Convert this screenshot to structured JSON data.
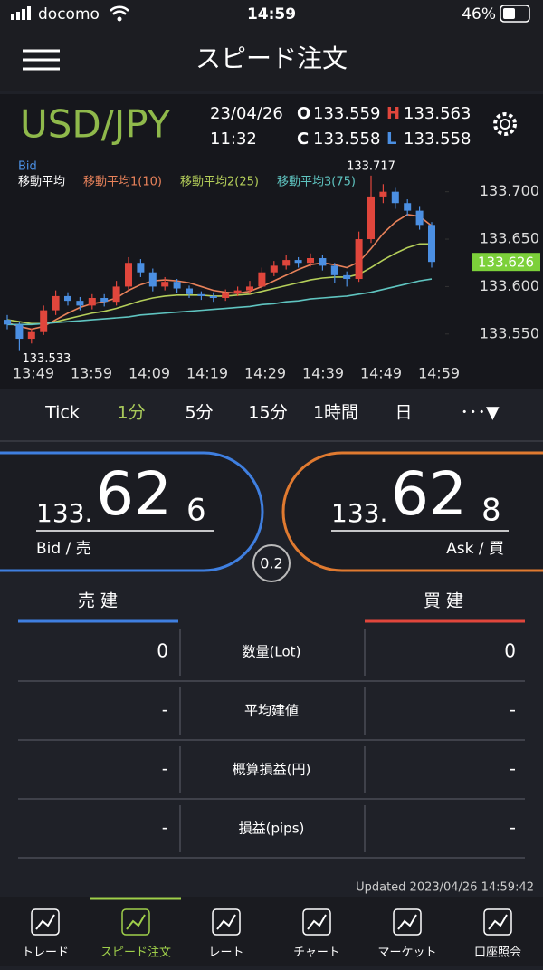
{
  "status": {
    "carrier": "docomo",
    "time": "14:59",
    "battery": "46%"
  },
  "header": {
    "title": "スピード注文"
  },
  "quote": {
    "pair": "USD/JPY",
    "date": "23/04/26",
    "time": "11:32",
    "open_key": "O",
    "open": "133.559",
    "high_key": "H",
    "high": "133.563",
    "close_key": "C",
    "close": "133.558",
    "low_key": "L",
    "low": "133.558"
  },
  "chart": {
    "type": "candlestick",
    "price_side": "Bid",
    "legend_title": "移動平均",
    "ylim": [
      133.525,
      133.735
    ],
    "yticks": [
      {
        "value": 133.55,
        "label": "133.550"
      },
      {
        "value": 133.6,
        "label": "133.600"
      },
      {
        "value": 133.65,
        "label": "133.650"
      },
      {
        "value": 133.7,
        "label": "133.700"
      }
    ],
    "xticks": [
      "13:49",
      "13:59",
      "14:09",
      "14:19",
      "14:29",
      "14:39",
      "14:49",
      "14:59"
    ],
    "up_color": "#e0463c",
    "down_color": "#4b8fe2",
    "open": [
      133.565,
      133.56,
      133.545,
      133.552,
      133.575,
      133.59,
      133.585,
      133.58,
      133.588,
      133.584,
      133.6,
      133.625,
      133.615,
      133.6,
      133.605,
      133.598,
      133.592,
      133.59,
      133.588,
      133.593,
      133.596,
      133.6,
      133.615,
      133.622,
      133.628,
      133.625,
      133.63,
      133.622,
      133.612,
      133.608,
      133.65,
      133.695,
      133.7,
      133.688,
      133.68,
      133.665
    ],
    "high": [
      133.57,
      133.563,
      133.556,
      133.58,
      133.596,
      133.594,
      133.589,
      133.592,
      133.592,
      133.606,
      133.631,
      133.629,
      133.619,
      133.61,
      133.608,
      133.601,
      133.595,
      133.594,
      133.597,
      133.6,
      133.606,
      133.62,
      133.627,
      133.633,
      133.631,
      133.635,
      133.633,
      133.625,
      133.616,
      133.658,
      133.717,
      133.708,
      133.704,
      133.692,
      133.684,
      133.668
    ],
    "low": [
      133.555,
      133.533,
      133.54,
      133.549,
      133.57,
      133.58,
      133.575,
      133.576,
      133.579,
      133.58,
      133.596,
      133.61,
      133.595,
      133.596,
      133.593,
      133.588,
      133.586,
      133.584,
      133.585,
      133.59,
      133.592,
      133.597,
      133.611,
      133.618,
      133.62,
      133.621,
      133.617,
      133.604,
      133.6,
      133.605,
      133.646,
      133.688,
      133.682,
      133.674,
      133.66,
      133.62
    ],
    "close": [
      133.56,
      133.545,
      133.552,
      133.575,
      133.59,
      133.585,
      133.58,
      133.588,
      133.584,
      133.6,
      133.625,
      133.615,
      133.6,
      133.605,
      133.598,
      133.592,
      133.59,
      133.588,
      133.593,
      133.596,
      133.6,
      133.615,
      133.622,
      133.628,
      133.625,
      133.63,
      133.622,
      133.612,
      133.608,
      133.65,
      133.695,
      133.7,
      133.688,
      133.68,
      133.665,
      133.626
    ],
    "ma": [
      {
        "name": "移動平均1(10)",
        "color": "#e8825a",
        "values": [
          133.562,
          133.558,
          133.555,
          133.558,
          133.565,
          133.572,
          133.578,
          133.582,
          133.584,
          133.588,
          133.596,
          133.602,
          133.606,
          133.607,
          133.606,
          133.604,
          133.6,
          133.596,
          133.594,
          133.593,
          133.595,
          133.6,
          133.606,
          133.612,
          133.618,
          133.623,
          133.625,
          133.623,
          133.62,
          133.626,
          133.64,
          133.656,
          133.668,
          133.676,
          133.674,
          133.664
        ]
      },
      {
        "name": "移動平均2(25)",
        "color": "#b5cf5a",
        "values": [
          133.565,
          133.563,
          133.561,
          133.561,
          133.563,
          133.566,
          133.569,
          133.572,
          133.574,
          133.577,
          133.581,
          133.585,
          133.588,
          133.59,
          133.591,
          133.591,
          133.591,
          133.59,
          133.59,
          133.591,
          133.592,
          133.595,
          133.598,
          133.601,
          133.604,
          133.607,
          133.609,
          133.61,
          133.61,
          133.613,
          133.62,
          133.628,
          133.635,
          133.641,
          133.645,
          133.645
        ]
      },
      {
        "name": "移動平均3(75)",
        "color": "#5fc4c0",
        "values": [
          133.56,
          133.56,
          133.56,
          133.561,
          133.562,
          133.563,
          133.564,
          133.565,
          133.566,
          133.567,
          133.568,
          133.57,
          133.571,
          133.572,
          133.573,
          133.574,
          133.575,
          133.576,
          133.577,
          133.578,
          133.579,
          133.581,
          133.582,
          133.584,
          133.585,
          133.587,
          133.588,
          133.589,
          133.59,
          133.592,
          133.594,
          133.597,
          133.6,
          133.603,
          133.606,
          133.608
        ]
      }
    ],
    "high_label": "133.717",
    "low_label": "133.533",
    "last_label": "133.626",
    "last_value": 133.626
  },
  "tabs": [
    "Tick",
    "1分",
    "5分",
    "15分",
    "1時間",
    "日",
    "･･･▼"
  ],
  "active_tab": 1,
  "bid": {
    "prefix": "133.",
    "big": "62",
    "small": "6",
    "label": "Bid / 売"
  },
  "ask": {
    "prefix": "133.",
    "big": "62",
    "small": "8",
    "label": "Ask / 買"
  },
  "spread": "0.2",
  "table": {
    "sell_header": "売 建",
    "buy_header": "買 建",
    "rows": [
      [
        "0",
        "数量(Lot)",
        "0"
      ],
      [
        "-",
        "平均建値",
        "-"
      ],
      [
        "-",
        "概算損益(円)",
        "-"
      ],
      [
        "-",
        "損益(pips)",
        "-"
      ]
    ]
  },
  "updated": "Updated  2023/04/26 14:59:42",
  "nav": [
    "トレード",
    "スピード注文",
    "レート",
    "チャート",
    "マーケット",
    "口座照会"
  ],
  "active_nav": 1
}
